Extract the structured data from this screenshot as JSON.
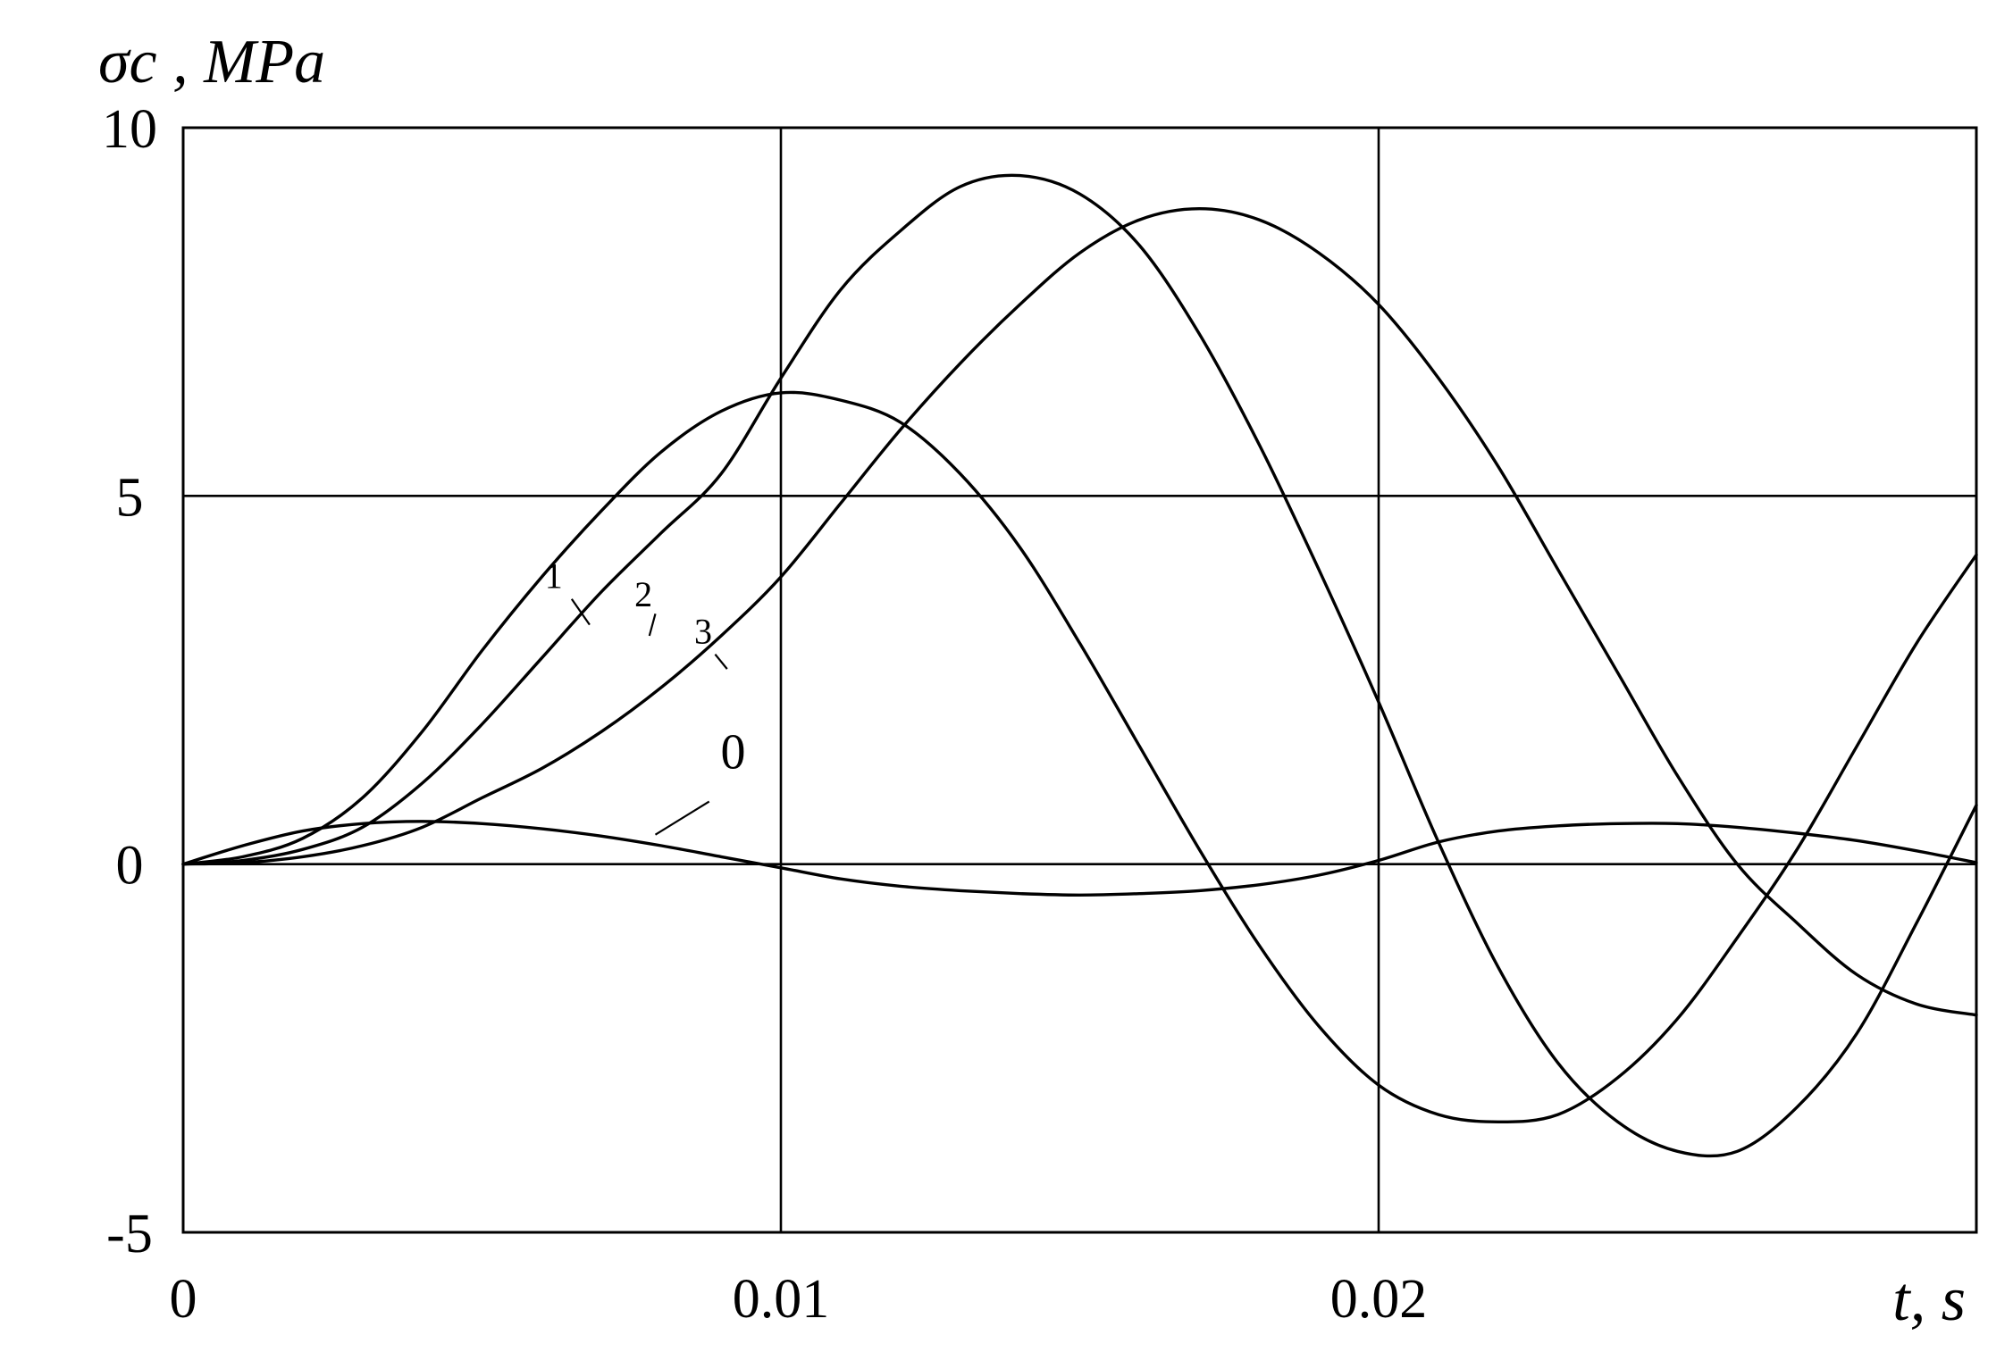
{
  "chart_data": {
    "type": "line",
    "xlabel": "t, s",
    "ylabel": "σc , MPa",
    "xlim": [
      0,
      0.03
    ],
    "ylim": [
      -5,
      10
    ],
    "grid": true,
    "x_ticks": [
      {
        "value": 0,
        "label": "0"
      },
      {
        "value": 0.01,
        "label": "0.01"
      },
      {
        "value": 0.02,
        "label": "0.02"
      }
    ],
    "y_ticks": [
      {
        "value": 10,
        "label": "10"
      },
      {
        "value": 5,
        "label": "5"
      },
      {
        "value": 0,
        "label": "0"
      },
      {
        "value": -5,
        "label": "-5"
      }
    ],
    "series": [
      {
        "name": "0",
        "x": [
          0,
          0.001,
          0.002,
          0.003,
          0.004,
          0.005,
          0.006,
          0.007,
          0.008,
          0.009,
          0.01,
          0.011,
          0.012,
          0.013,
          0.014,
          0.015,
          0.016,
          0.017,
          0.018,
          0.019,
          0.02,
          0.021,
          0.022,
          0.023,
          0.024,
          0.025,
          0.026,
          0.027,
          0.028,
          0.029,
          0.03
        ],
        "y": [
          0,
          0.25,
          0.45,
          0.55,
          0.58,
          0.55,
          0.48,
          0.38,
          0.25,
          0.1,
          -0.05,
          -0.2,
          -0.3,
          -0.36,
          -0.4,
          -0.42,
          -0.4,
          -0.36,
          -0.28,
          -0.15,
          0.05,
          0.3,
          0.45,
          0.52,
          0.55,
          0.55,
          0.5,
          0.42,
          0.32,
          0.18,
          0.02
        ]
      },
      {
        "name": "1",
        "x": [
          0,
          0.001,
          0.002,
          0.003,
          0.004,
          0.005,
          0.006,
          0.007,
          0.008,
          0.009,
          0.01,
          0.011,
          0.012,
          0.013,
          0.014,
          0.015,
          0.016,
          0.017,
          0.018,
          0.019,
          0.02,
          0.021,
          0.022,
          0.023,
          0.024,
          0.025,
          0.026,
          0.027,
          0.028,
          0.029,
          0.03
        ],
        "y": [
          0,
          0.1,
          0.35,
          0.9,
          1.8,
          2.9,
          3.9,
          4.8,
          5.6,
          6.15,
          6.4,
          6.3,
          6.0,
          5.3,
          4.3,
          3.0,
          1.6,
          0.2,
          -1.1,
          -2.2,
          -3.0,
          -3.4,
          -3.5,
          -3.4,
          -2.9,
          -2.1,
          -1.0,
          0.2,
          1.6,
          3.0,
          4.2
        ]
      },
      {
        "name": "2",
        "x": [
          0,
          0.001,
          0.002,
          0.003,
          0.004,
          0.005,
          0.006,
          0.007,
          0.008,
          0.009,
          0.01,
          0.011,
          0.012,
          0.013,
          0.014,
          0.015,
          0.016,
          0.017,
          0.018,
          0.019,
          0.02,
          0.021,
          0.022,
          0.023,
          0.024,
          0.025,
          0.026,
          0.027,
          0.028,
          0.029,
          0.03
        ],
        "y": [
          0,
          0.05,
          0.2,
          0.5,
          1.1,
          1.9,
          2.8,
          3.7,
          4.5,
          5.3,
          6.6,
          7.8,
          8.6,
          9.2,
          9.35,
          9.1,
          8.4,
          7.2,
          5.7,
          4.0,
          2.2,
          0.3,
          -1.4,
          -2.7,
          -3.5,
          -3.9,
          -3.9,
          -3.3,
          -2.3,
          -0.8,
          0.8
        ]
      },
      {
        "name": "3",
        "x": [
          0,
          0.001,
          0.002,
          0.003,
          0.004,
          0.005,
          0.006,
          0.007,
          0.008,
          0.009,
          0.01,
          0.011,
          0.012,
          0.013,
          0.014,
          0.015,
          0.016,
          0.017,
          0.018,
          0.019,
          0.02,
          0.021,
          0.022,
          0.023,
          0.024,
          0.025,
          0.026,
          0.027,
          0.028,
          0.029,
          0.03
        ],
        "y": [
          0,
          0.02,
          0.1,
          0.25,
          0.5,
          0.9,
          1.3,
          1.8,
          2.4,
          3.1,
          3.9,
          4.9,
          5.9,
          6.8,
          7.6,
          8.3,
          8.75,
          8.9,
          8.75,
          8.3,
          7.6,
          6.6,
          5.4,
          4.0,
          2.6,
          1.2,
          0.0,
          -0.8,
          -1.5,
          -1.9,
          -2.05
        ]
      }
    ]
  }
}
